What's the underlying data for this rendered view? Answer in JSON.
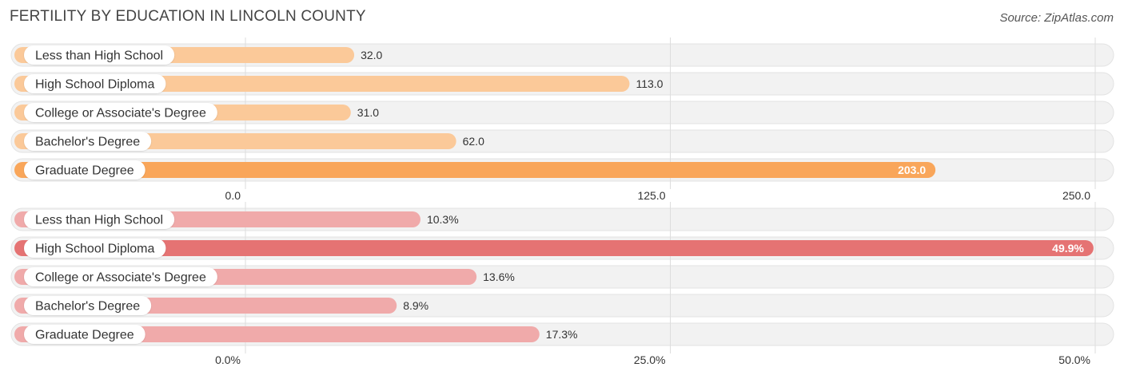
{
  "title": "FERTILITY BY EDUCATION IN LINCOLN COUNTY",
  "source": "Source: ZipAtlas.com",
  "chart_data": [
    {
      "type": "bar",
      "orientation": "horizontal",
      "categories": [
        "Less than High School",
        "High School Diploma",
        "College or Associate's Degree",
        "Bachelor's Degree",
        "Graduate Degree"
      ],
      "values": [
        32.0,
        113.0,
        31.0,
        62.0,
        203.0
      ],
      "value_labels": [
        "32.0",
        "113.0",
        "31.0",
        "62.0",
        "203.0"
      ],
      "xlim": [
        0,
        250
      ],
      "ticks": [
        0,
        125,
        250
      ],
      "tick_labels": [
        "0.0",
        "125.0",
        "250.0"
      ],
      "highlight_index": 4,
      "colors": {
        "bar": "#fbc999",
        "highlight": "#f9a65a"
      },
      "grid": true
    },
    {
      "type": "bar",
      "orientation": "horizontal",
      "categories": [
        "Less than High School",
        "High School Diploma",
        "College or Associate's Degree",
        "Bachelor's Degree",
        "Graduate Degree"
      ],
      "values": [
        10.3,
        49.9,
        13.6,
        8.9,
        17.3
      ],
      "value_labels": [
        "10.3%",
        "49.9%",
        "13.6%",
        "8.9%",
        "17.3%"
      ],
      "xlim": [
        0,
        50
      ],
      "ticks": [
        0,
        25,
        50
      ],
      "tick_labels": [
        "0.0%",
        "25.0%",
        "50.0%"
      ],
      "highlight_index": 1,
      "colors": {
        "bar": "#f0aaaa",
        "highlight": "#e57373"
      },
      "grid": true
    }
  ]
}
